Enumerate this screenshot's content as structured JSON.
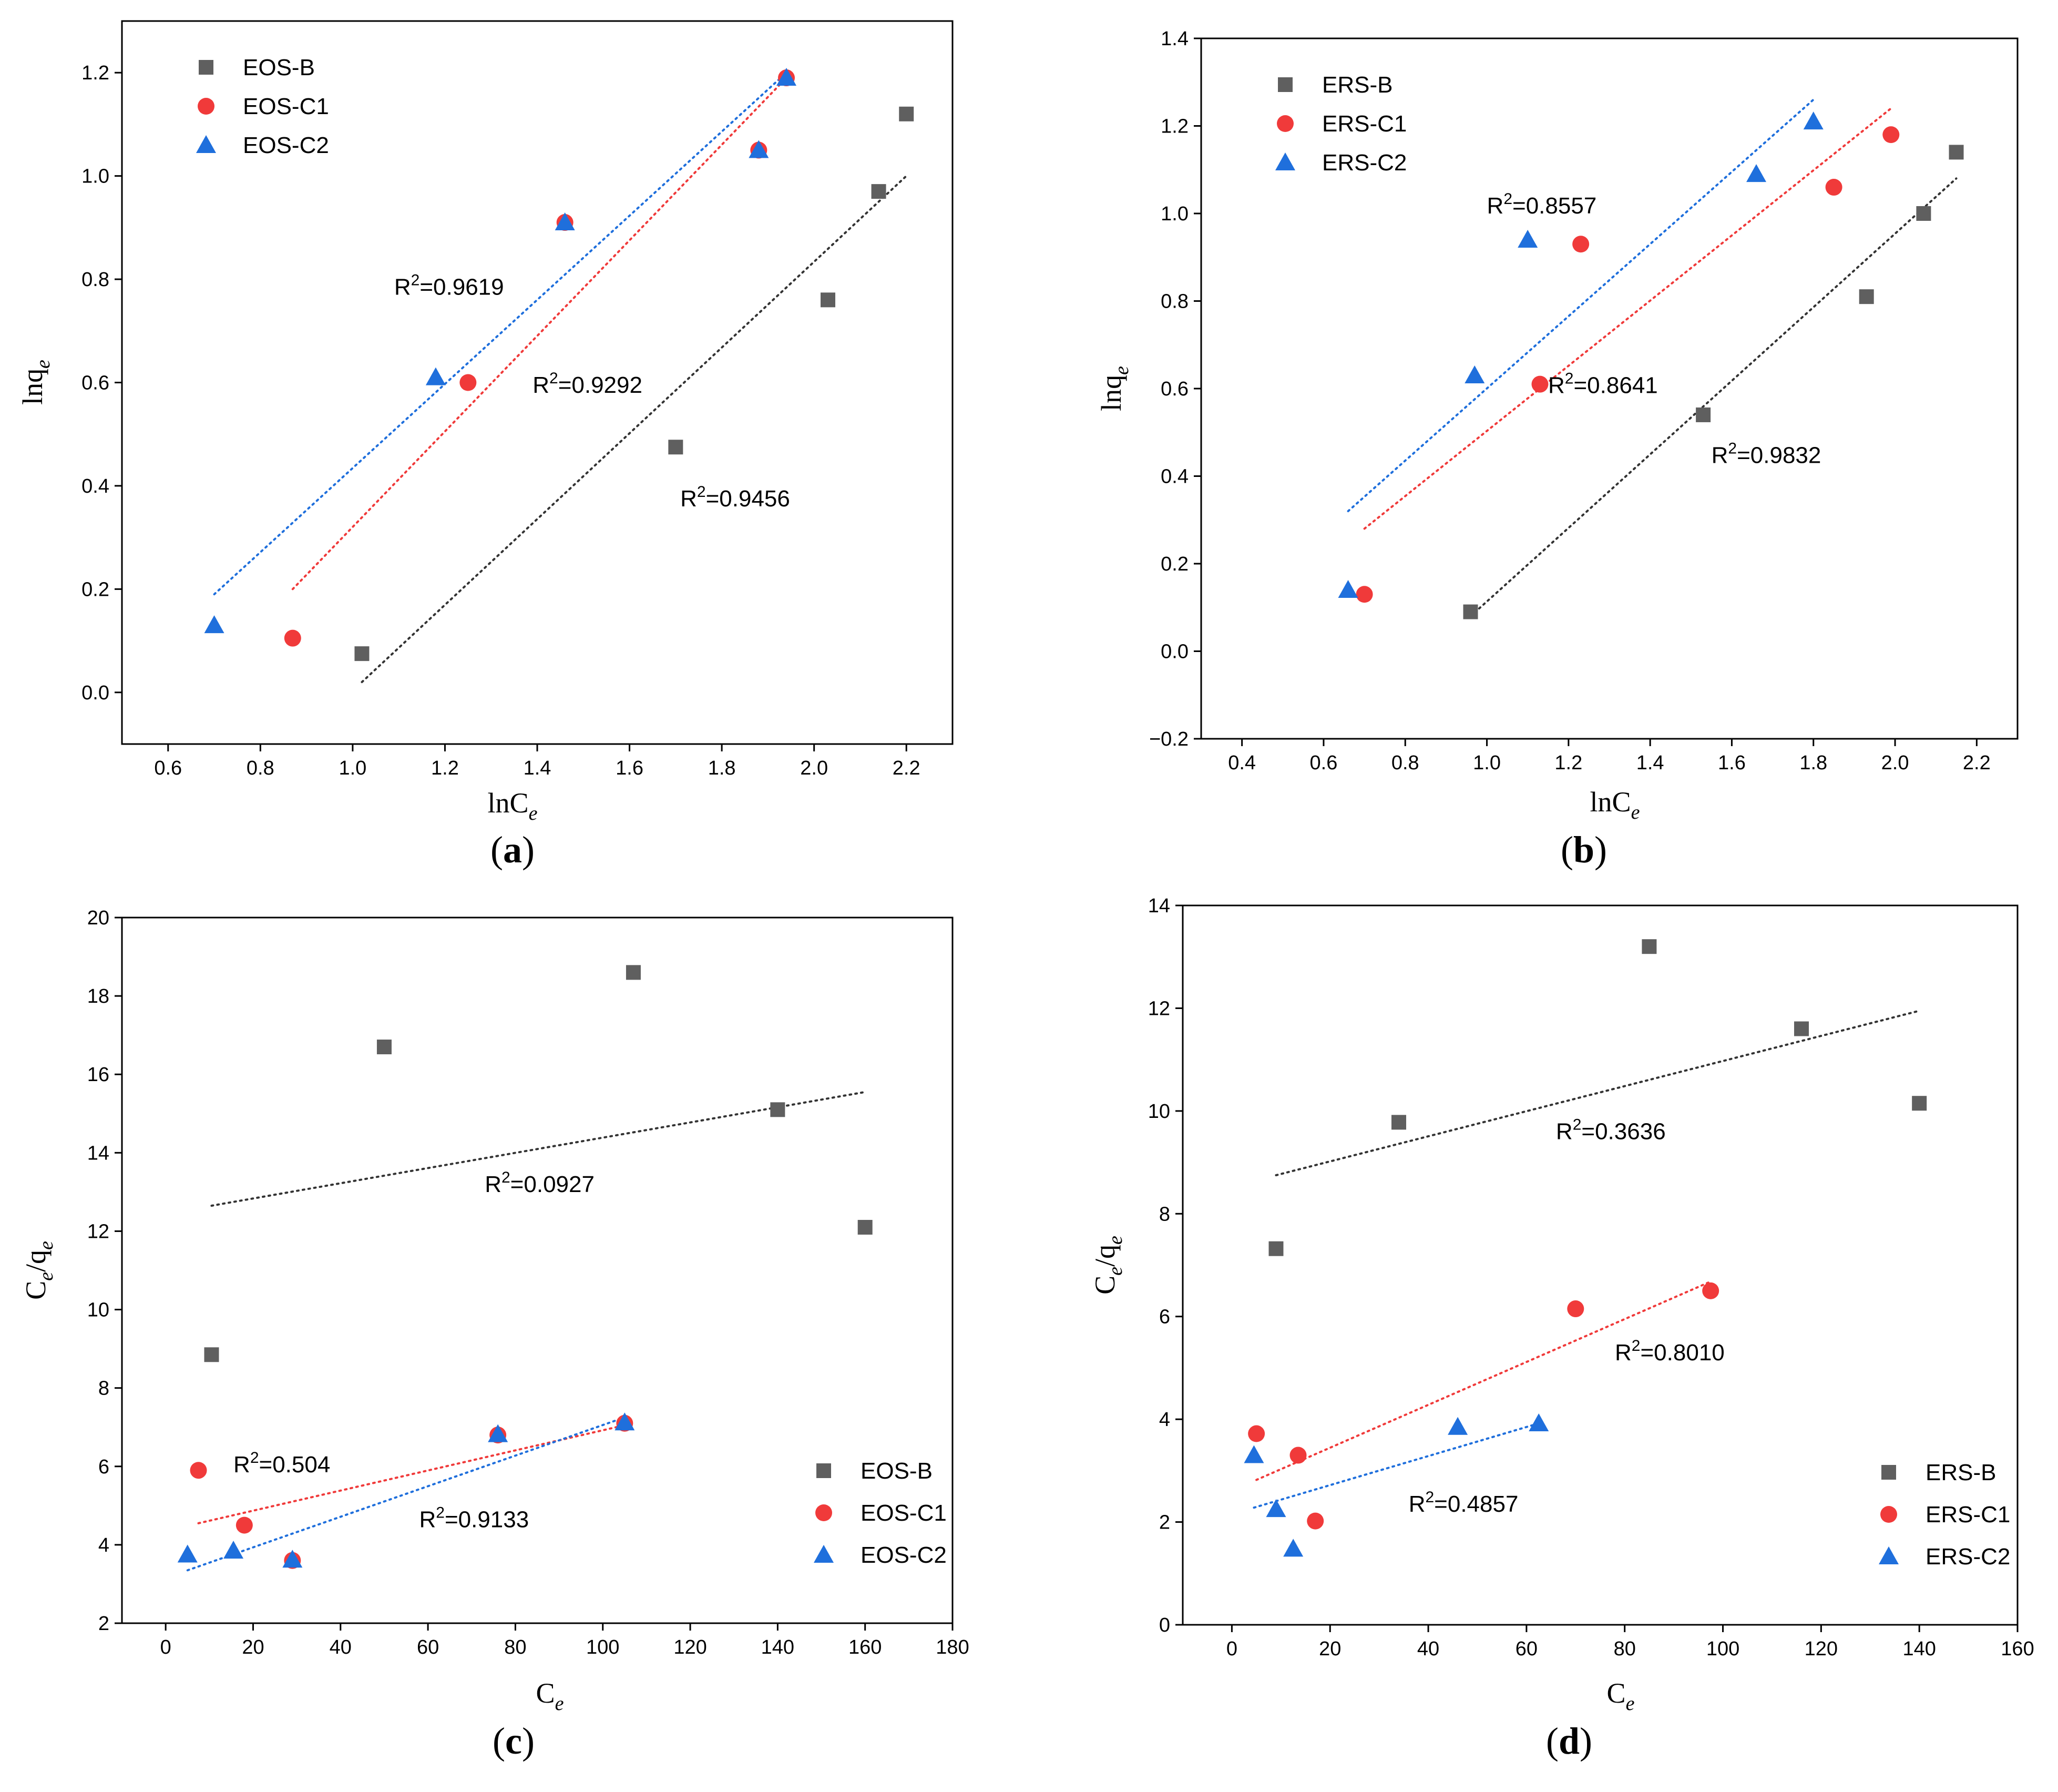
{
  "colors": {
    "B": "#5f5f5f",
    "C1": "#f03a3a",
    "C2": "#1f6fdc",
    "B_line": "#333333"
  },
  "chart_data": [
    {
      "type": "scatter",
      "caption_letter": "a",
      "xlabel_base": "lnC",
      "xlabel_sub": "e",
      "ylabel_base": "lnq",
      "ylabel_sub": "e",
      "xlim": [
        0.5,
        2.3
      ],
      "ylim": [
        -0.1,
        1.3
      ],
      "xticks": [
        "0.6",
        "0.8",
        "1.0",
        "1.2",
        "1.4",
        "1.6",
        "1.8",
        "2.0",
        "2.2"
      ],
      "yticks": [
        "0.0",
        "0.2",
        "0.4",
        "0.6",
        "0.8",
        "1.0",
        "1.2"
      ],
      "legend_placement": "top-left",
      "series": [
        {
          "name": "EOS-B",
          "key": "B",
          "marker": "square",
          "x": [
            1.02,
            1.7,
            2.03,
            2.14,
            2.2
          ],
          "y": [
            0.075,
            0.475,
            0.76,
            0.97,
            1.12
          ],
          "fit": [
            [
              1.02,
              0.02
            ],
            [
              2.2,
              1.0
            ]
          ],
          "r2_label": "R",
          "r2_value": "=0.9456",
          "r2_at": [
            1.71,
            0.36
          ]
        },
        {
          "name": "EOS-C1",
          "key": "C1",
          "marker": "circle",
          "x": [
            0.87,
            1.25,
            1.46,
            1.88,
            1.94
          ],
          "y": [
            0.105,
            0.6,
            0.91,
            1.05,
            1.19
          ],
          "fit": [
            [
              0.87,
              0.2
            ],
            [
              1.94,
              1.19
            ]
          ],
          "r2_label": "R",
          "r2_value": "=0.9292",
          "r2_at": [
            1.39,
            0.58
          ]
        },
        {
          "name": "EOS-C2",
          "key": "C2",
          "marker": "triangle",
          "x": [
            0.7,
            1.18,
            1.46,
            1.88,
            1.94
          ],
          "y": [
            0.13,
            0.61,
            0.91,
            1.05,
            1.19
          ],
          "fit": [
            [
              0.7,
              0.19
            ],
            [
              1.94,
              1.2
            ]
          ],
          "r2_label": "R",
          "r2_value": "=0.9619",
          "r2_at": [
            1.09,
            0.77
          ]
        }
      ]
    },
    {
      "type": "scatter",
      "caption_letter": "b",
      "xlabel_base": "lnC",
      "xlabel_sub": "e",
      "ylabel_base": "lnq",
      "ylabel_sub": "e",
      "xlim": [
        0.3,
        2.3
      ],
      "ylim": [
        -0.2,
        1.4
      ],
      "xticks": [
        "0.4",
        "0.6",
        "0.8",
        "1.0",
        "1.2",
        "1.4",
        "1.6",
        "1.8",
        "2.0",
        "2.2"
      ],
      "yticks": [
        "−0.2",
        "0.0",
        "0.2",
        "0.4",
        "0.6",
        "0.8",
        "1.0",
        "1.2",
        "1.4"
      ],
      "legend_placement": "top-left",
      "series": [
        {
          "name": "ERS-B",
          "key": "B",
          "marker": "square",
          "x": [
            0.96,
            1.53,
            1.93,
            2.07,
            2.15
          ],
          "y": [
            0.09,
            0.54,
            0.81,
            1.0,
            1.14
          ],
          "fit": [
            [
              0.96,
              0.08
            ],
            [
              2.15,
              1.08
            ]
          ],
          "r2_label": "R",
          "r2_value": "=0.9832",
          "r2_at": [
            1.55,
            0.43
          ]
        },
        {
          "name": "ERS-C1",
          "key": "C1",
          "marker": "circle",
          "x": [
            0.7,
            1.13,
            1.23,
            1.85,
            1.99
          ],
          "y": [
            0.13,
            0.61,
            0.93,
            1.06,
            1.18
          ],
          "fit": [
            [
              0.7,
              0.28
            ],
            [
              1.99,
              1.24
            ]
          ],
          "r2_label": "R",
          "r2_value": "=0.8641",
          "r2_at": [
            1.15,
            0.59
          ]
        },
        {
          "name": "ERS-C2",
          "key": "C2",
          "marker": "triangle",
          "x": [
            0.66,
            0.97,
            1.1,
            1.66,
            1.8
          ],
          "y": [
            0.14,
            0.63,
            0.94,
            1.09,
            1.21
          ],
          "fit": [
            [
              0.66,
              0.32
            ],
            [
              1.8,
              1.26
            ]
          ],
          "r2_label": "R",
          "r2_value": "=0.8557",
          "r2_at": [
            1.0,
            1.0
          ]
        }
      ]
    },
    {
      "type": "scatter",
      "caption_letter": "c",
      "xlabel_base": "C",
      "xlabel_sub": "e",
      "ylabel_base": "C",
      "ylabel_sub": "e",
      "ylabel_mid": "/q",
      "ylabel_sub2": "e",
      "xlim": [
        -10,
        180
      ],
      "ylim": [
        2,
        20
      ],
      "xticks": [
        "0",
        "20",
        "40",
        "60",
        "80",
        "100",
        "120",
        "140",
        "160",
        "180"
      ],
      "yticks": [
        "2",
        "4",
        "6",
        "8",
        "10",
        "12",
        "14",
        "16",
        "18",
        "20"
      ],
      "legend_placement": "bottom-right",
      "series": [
        {
          "name": "EOS-B",
          "key": "B",
          "marker": "square",
          "x": [
            10.5,
            50,
            107,
            140,
            160
          ],
          "y": [
            8.85,
            16.7,
            18.6,
            15.1,
            12.1
          ],
          "fit": [
            [
              10.5,
              12.65
            ],
            [
              160,
              15.55
            ]
          ],
          "r2_label": "R",
          "r2_value": "=0.0927",
          "r2_at": [
            73,
            13.0
          ]
        },
        {
          "name": "EOS-C1",
          "key": "C1",
          "marker": "circle",
          "x": [
            7.5,
            18,
            29,
            76,
            105
          ],
          "y": [
            5.9,
            4.5,
            3.6,
            6.8,
            7.1
          ],
          "fit": [
            [
              7.5,
              4.55
            ],
            [
              105,
              7.05
            ]
          ],
          "r2_label": "R",
          "r2_value": "=0.504",
          "r2_at": [
            15.5,
            5.85
          ]
        },
        {
          "name": "EOS-C2",
          "key": "C2",
          "marker": "triangle",
          "x": [
            5,
            15.5,
            29,
            76,
            105
          ],
          "y": [
            3.75,
            3.85,
            3.62,
            6.82,
            7.12
          ],
          "fit": [
            [
              5,
              3.35
            ],
            [
              105,
              7.25
            ]
          ],
          "r2_label": "R",
          "r2_value": "=0.9133",
          "r2_at": [
            58,
            4.45
          ]
        }
      ]
    },
    {
      "type": "scatter",
      "caption_letter": "d",
      "xlabel_base": "C",
      "xlabel_sub": "e",
      "ylabel_base": "C",
      "ylabel_sub": "e",
      "ylabel_mid": "/q",
      "ylabel_sub2": "e",
      "xlim": [
        -10,
        160
      ],
      "ylim": [
        0,
        14
      ],
      "xticks": [
        "0",
        "20",
        "40",
        "60",
        "80",
        "100",
        "120",
        "140",
        "160"
      ],
      "yticks": [
        "0",
        "2",
        "4",
        "6",
        "8",
        "10",
        "12",
        "14"
      ],
      "legend_placement": "bottom-right",
      "series": [
        {
          "name": "ERS-B",
          "key": "B",
          "marker": "square",
          "x": [
            9,
            34,
            85,
            116,
            140
          ],
          "y": [
            7.32,
            9.78,
            13.2,
            11.6,
            10.15
          ],
          "fit": [
            [
              9,
              8.75
            ],
            [
              140,
              11.95
            ]
          ],
          "r2_label": "R",
          "r2_value": "=0.3636",
          "r2_at": [
            66,
            9.45
          ]
        },
        {
          "name": "ERS-C1",
          "key": "C1",
          "marker": "circle",
          "x": [
            5,
            13.5,
            17,
            70,
            97.5
          ],
          "y": [
            3.72,
            3.3,
            2.02,
            6.15,
            6.5
          ],
          "fit": [
            [
              5,
              2.82
            ],
            [
              97.5,
              6.68
            ]
          ],
          "r2_label": "R",
          "r2_value": "=0.8010",
          "r2_at": [
            78,
            5.15
          ]
        },
        {
          "name": "ERS-C2",
          "key": "C2",
          "marker": "triangle",
          "x": [
            4.5,
            9,
            12.5,
            46,
            62.5
          ],
          "y": [
            3.3,
            2.25,
            1.48,
            3.85,
            3.92
          ],
          "fit": [
            [
              4.5,
              2.28
            ],
            [
              62.5,
              3.92
            ]
          ],
          "r2_label": "R",
          "r2_value": "=0.4857",
          "r2_at": [
            36,
            2.2
          ]
        }
      ]
    }
  ]
}
